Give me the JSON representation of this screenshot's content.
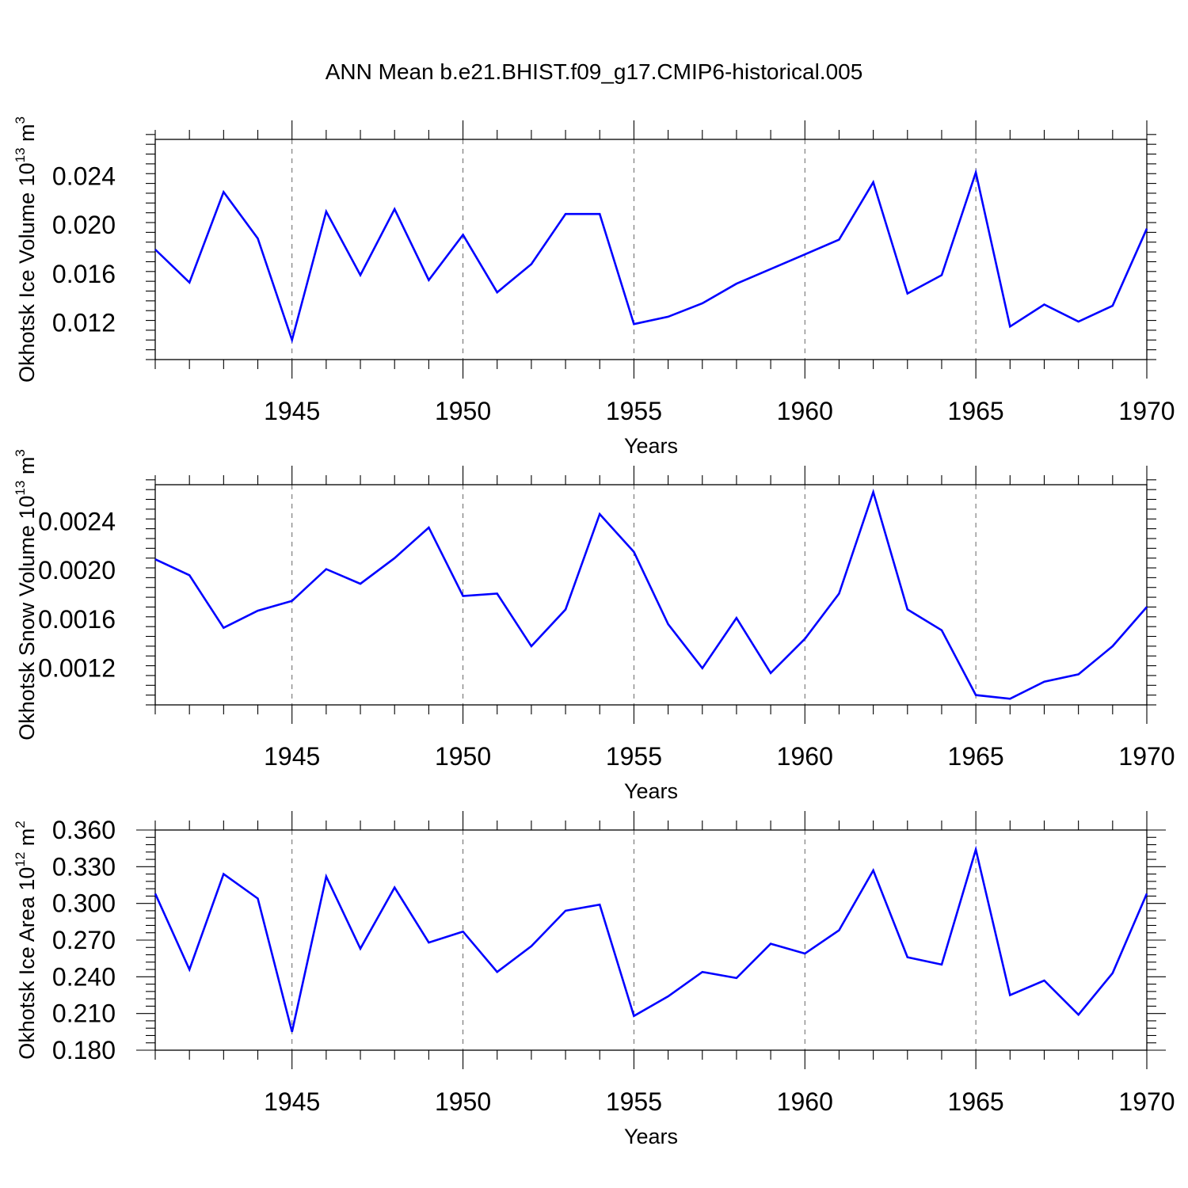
{
  "chart_data": {
    "title": "ANN Mean b.e21.BHIST.f09_g17.CMIP6-historical.005",
    "line_color": "#0000ff",
    "grid": "vertical dashed at labeled x ticks",
    "panels": [
      {
        "type": "line",
        "ylabel": "Okhotsk Ice Volume 10",
        "ylabel_exponent": "13",
        "ylabel_unit": " m",
        "ylabel_unit_exponent": "3",
        "xlabel": "Years",
        "xlim": [
          1941,
          1970
        ],
        "ylim": [
          0.009,
          0.027
        ],
        "yticks": [
          0.012,
          0.016,
          0.02,
          0.024
        ],
        "ytick_labels": [
          "0.012",
          "0.016",
          "0.020",
          "0.024"
        ],
        "yminor_step": 0.0008,
        "xticks": [
          1945,
          1950,
          1955,
          1960,
          1965,
          1970
        ],
        "xtick_labels": [
          "1945",
          "1950",
          "1955",
          "1960",
          "1965",
          "1970"
        ],
        "x": [
          1941,
          1942,
          1943,
          1944,
          1945,
          1946,
          1947,
          1948,
          1949,
          1950,
          1951,
          1952,
          1953,
          1954,
          1955,
          1956,
          1957,
          1958,
          1959,
          1960,
          1961,
          1962,
          1963,
          1964,
          1965,
          1966,
          1967,
          1968,
          1969,
          1970
        ],
        "y": [
          0.018,
          0.0153,
          0.0227,
          0.0189,
          0.0106,
          0.0211,
          0.0159,
          0.0213,
          0.0155,
          0.0192,
          0.0145,
          0.0168,
          0.0209,
          0.0209,
          0.0119,
          0.0125,
          0.0136,
          0.0152,
          0.0164,
          0.0176,
          0.0188,
          0.0235,
          0.0144,
          0.0159,
          0.0243,
          0.0117,
          0.0135,
          0.0121,
          0.0134,
          0.0197
        ]
      },
      {
        "type": "line",
        "ylabel": "Okhotsk Snow Volume 10",
        "ylabel_exponent": "13",
        "ylabel_unit": " m",
        "ylabel_unit_exponent": "3",
        "xlabel": "Years",
        "xlim": [
          1941,
          1970
        ],
        "ylim": [
          0.0009,
          0.0027
        ],
        "yticks": [
          0.0012,
          0.0016,
          0.002,
          0.0024
        ],
        "ytick_labels": [
          "0.0012",
          "0.0016",
          "0.0020",
          "0.0024"
        ],
        "yminor_step": 8e-05,
        "xticks": [
          1945,
          1950,
          1955,
          1960,
          1965,
          1970
        ],
        "xtick_labels": [
          "1945",
          "1950",
          "1955",
          "1960",
          "1965",
          "1970"
        ],
        "x": [
          1941,
          1942,
          1943,
          1944,
          1945,
          1946,
          1947,
          1948,
          1949,
          1950,
          1951,
          1952,
          1953,
          1954,
          1955,
          1956,
          1957,
          1958,
          1959,
          1960,
          1961,
          1962,
          1963,
          1964,
          1965,
          1966,
          1967,
          1968,
          1969,
          1970
        ],
        "y": [
          0.00209,
          0.00196,
          0.00153,
          0.00167,
          0.00175,
          0.00201,
          0.00189,
          0.0021,
          0.00235,
          0.00179,
          0.00181,
          0.00138,
          0.00168,
          0.00246,
          0.00215,
          0.00156,
          0.0012,
          0.00161,
          0.00116,
          0.00144,
          0.00181,
          0.00264,
          0.00168,
          0.00151,
          0.00098,
          0.00095,
          0.00109,
          0.00115,
          0.00138,
          0.0017
        ]
      },
      {
        "type": "line",
        "ylabel": "Okhotsk Ice Area 10",
        "ylabel_exponent": "12",
        "ylabel_unit": " m",
        "ylabel_unit_exponent": "2",
        "xlabel": "Years",
        "xlim": [
          1941,
          1970
        ],
        "ylim": [
          0.18,
          0.36
        ],
        "yticks": [
          0.18,
          0.21,
          0.24,
          0.27,
          0.3,
          0.33,
          0.36
        ],
        "ytick_labels": [
          "0.180",
          "0.210",
          "0.240",
          "0.270",
          "0.300",
          "0.330",
          "0.360"
        ],
        "yminor_step": 0.006,
        "xticks": [
          1945,
          1950,
          1955,
          1960,
          1965,
          1970
        ],
        "xtick_labels": [
          "1945",
          "1950",
          "1955",
          "1960",
          "1965",
          "1970"
        ],
        "x": [
          1941,
          1942,
          1943,
          1944,
          1945,
          1946,
          1947,
          1948,
          1949,
          1950,
          1951,
          1952,
          1953,
          1954,
          1955,
          1956,
          1957,
          1958,
          1959,
          1960,
          1961,
          1962,
          1963,
          1964,
          1965,
          1966,
          1967,
          1968,
          1969,
          1970
        ],
        "y": [
          0.308,
          0.246,
          0.324,
          0.304,
          0.195,
          0.322,
          0.263,
          0.313,
          0.268,
          0.277,
          0.244,
          0.265,
          0.294,
          0.299,
          0.208,
          0.224,
          0.244,
          0.239,
          0.267,
          0.259,
          0.278,
          0.327,
          0.256,
          0.25,
          0.344,
          0.225,
          0.237,
          0.209,
          0.243,
          0.308
        ]
      }
    ]
  }
}
